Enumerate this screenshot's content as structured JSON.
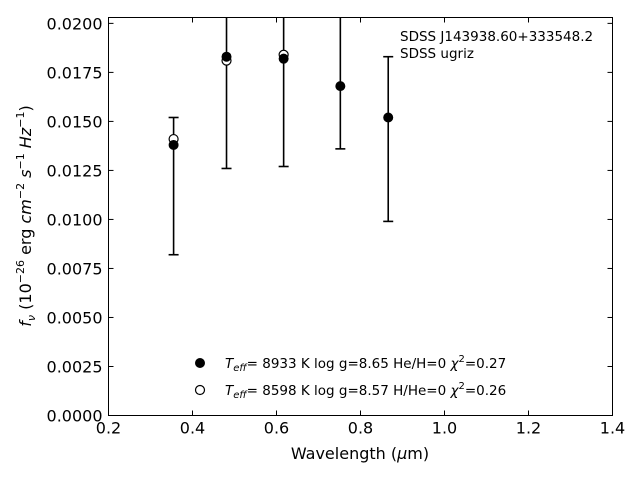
{
  "chart_data": {
    "type": "scatter",
    "xlabel": "Wavelength (μm)",
    "xlabel_parts": {
      "prefix": "Wavelength (",
      "mu": "μ",
      "suffix": "m)"
    },
    "ylabel_parts": {
      "f": "f",
      "nu": "ν",
      "a": " (10",
      "e26": "−26",
      "b": " erg ",
      "cm": "cm",
      "em2": "−2",
      "s": " s",
      "em1": "−1",
      "hz": " Hz",
      "em1b": "−1",
      "c": ")"
    },
    "xlim": [
      0.2,
      1.4
    ],
    "ylim": [
      0.0,
      0.0203
    ],
    "x_ticks": [
      "0.2",
      "0.4",
      "0.6",
      "0.8",
      "1.0",
      "1.2",
      "1.4"
    ],
    "y_ticks": [
      "0.0000",
      "0.0025",
      "0.0050",
      "0.0075",
      "0.0100",
      "0.0125",
      "0.0150",
      "0.0175",
      "0.0200"
    ],
    "annotations": [
      "SDSS J143938.60+333548.2",
      "SDSS ugriz"
    ],
    "observed": {
      "x": [
        0.355,
        0.481,
        0.617,
        0.752,
        0.866
      ],
      "y": [
        0.0138,
        0.0183,
        0.0182,
        0.0168,
        0.0152
      ],
      "yerr_low": [
        0.0082,
        0.0126,
        0.0127,
        0.0136,
        0.0099
      ],
      "yerr_high": [
        0.0152,
        0.0215,
        0.0225,
        0.021,
        0.0183
      ]
    },
    "series": [
      {
        "marker": "filled-circle",
        "legend_parts": {
          "T": "T",
          "eff": "eff",
          "rest": "=  8933 K  log g=8.65  He/H=0  ",
          "chi": "χ",
          "sq": "2",
          "val": "=0.27"
        },
        "y": [
          0.0138,
          0.0183,
          0.0182,
          0.0168,
          0.0152
        ]
      },
      {
        "marker": "open-circle",
        "legend_parts": {
          "T": "T",
          "eff": "eff",
          "rest": "=  8598 K  log g=8.57  H/He=0  ",
          "chi": "χ",
          "sq": "2",
          "val": "=0.26"
        },
        "y": [
          0.0141,
          0.0181,
          0.0184,
          null,
          null
        ]
      }
    ]
  }
}
